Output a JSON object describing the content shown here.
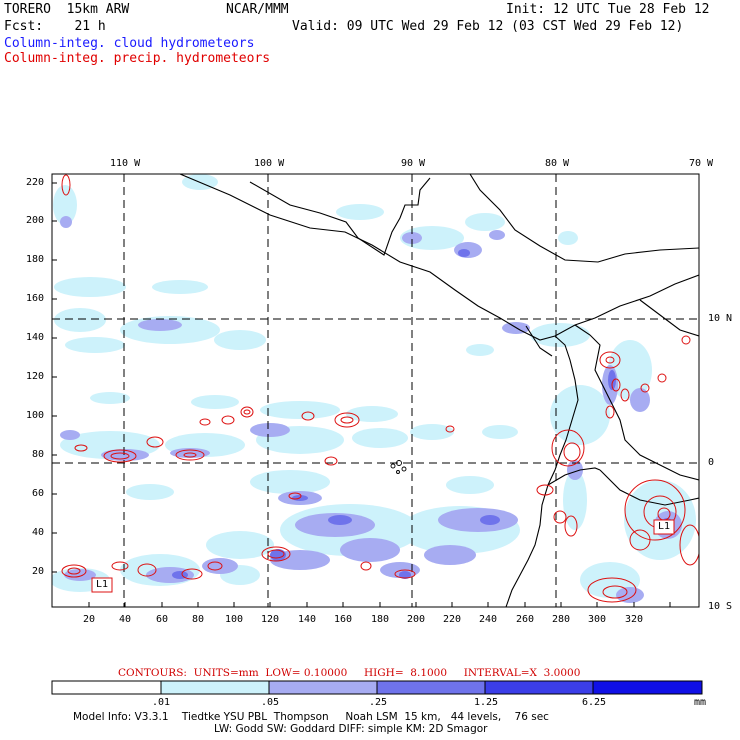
{
  "header": {
    "model": "TORERO  15km ARW",
    "center": "NCAR/MMM",
    "init": "Init: 12 UTC Tue 28 Feb 12",
    "fcst": "Fcst:    21 h",
    "valid": "Valid: 09 UTC Wed 29 Feb 12 (03 CST Wed 29 Feb 12)",
    "field_cloud": "Column-integ. cloud hydrometeors",
    "field_precip": "Column-integ. precip. hydrometeors"
  },
  "map": {
    "top_lon_labels": [
      "110 W",
      "100 W",
      "90 W",
      "80 W",
      "70 W"
    ],
    "right_lat_labels": [
      "10 N",
      "0",
      "10 S"
    ],
    "y_ticks": [
      "220",
      "200",
      "180",
      "160",
      "140",
      "120",
      "100",
      "80",
      "60",
      "40",
      "20"
    ],
    "x_ticks": [
      "20",
      "40",
      "60",
      "80",
      "100",
      "120",
      "140",
      "160",
      "180",
      "200",
      "220",
      "240",
      "260",
      "280",
      "300",
      "320"
    ],
    "low_markers": [
      "L1",
      "L1"
    ],
    "colors": {
      "land_outline": "#000000",
      "grid_dash": "#000000",
      "contour": "#dd1111",
      "shade_1": "#cdf2fb",
      "shade_2": "#a7acf2",
      "shade_3": "#6f73eb",
      "shade_4": "#3b3ee8",
      "shade_5": "#1010e6"
    }
  },
  "contours": {
    "text": "CONTOURS:  UNITS=mm  LOW= 0.10000     HIGH=  8.1000     INTERVAL=X  3.0000"
  },
  "colorbar": {
    "labels": [
      ".01",
      ".05",
      ".25",
      "1.25",
      "6.25"
    ],
    "unit": "mm",
    "colors": [
      "#ffffff",
      "#cdf2fb",
      "#a7acf2",
      "#6f73eb",
      "#3b3ee8",
      "#1010e6"
    ]
  },
  "footer": {
    "line1": "Model Info: V3.3.1    Tiedtke YSU PBL  Thompson     Noah LSM  15 km,   44 levels,    76 sec",
    "line2": "LW: Godd SW: Goddard DIFF: simple KM: 2D Smagor"
  }
}
